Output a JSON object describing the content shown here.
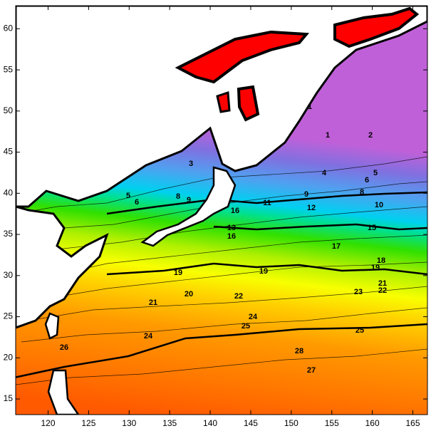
{
  "axes": {
    "xlim": [
      116,
      166.8
    ],
    "ylim": [
      13.1,
      62.8
    ],
    "xticks": [
      120,
      125,
      130,
      135,
      140,
      145,
      150,
      155,
      160,
      165
    ],
    "yticks": [
      15,
      20,
      25,
      30,
      35,
      40,
      45,
      50,
      55,
      60
    ]
  },
  "contour_labels": [
    "1",
    "1",
    "2",
    "3",
    "4",
    "5",
    "6",
    "8",
    "9",
    "9",
    "11",
    "12",
    "10",
    "5",
    "6",
    "8",
    "15",
    "16",
    "13",
    "16",
    "17",
    "18",
    "19",
    "19",
    "19",
    "20",
    "21",
    "22",
    "23",
    "21",
    "22",
    "24",
    "25",
    "24",
    "25",
    "26",
    "28",
    "27"
  ]
}
